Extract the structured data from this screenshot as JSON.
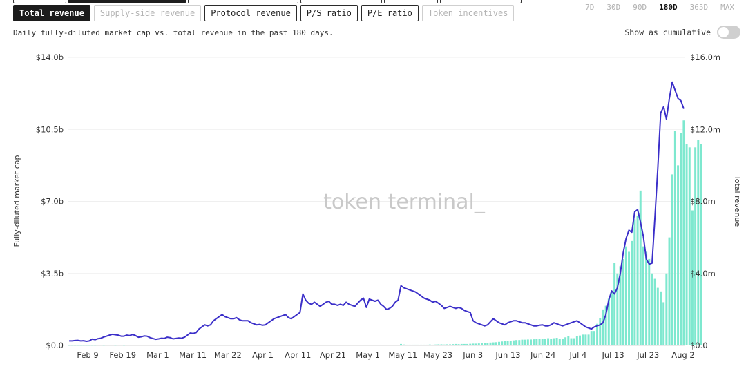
{
  "tabs": [
    {
      "label": "Total revenue",
      "state": "active"
    },
    {
      "label": "Supply-side revenue",
      "state": "disabled"
    },
    {
      "label": "Protocol revenue",
      "state": "normal"
    },
    {
      "label": "P/S ratio",
      "state": "normal"
    },
    {
      "label": "P/E ratio",
      "state": "normal"
    },
    {
      "label": "Token incentives",
      "state": "disabled"
    }
  ],
  "ranges": [
    {
      "label": "7D",
      "active": false
    },
    {
      "label": "30D",
      "active": false
    },
    {
      "label": "90D",
      "active": false
    },
    {
      "label": "180D",
      "active": true
    },
    {
      "label": "365D",
      "active": false
    },
    {
      "label": "MAX",
      "active": false
    }
  ],
  "description": "Daily fully-diluted market cap vs. total revenue in the past 180 days.",
  "cumulative": {
    "label": "Show as cumulative",
    "enabled": false
  },
  "watermark": "token terminal_",
  "chart_data": {
    "type": "bar+line",
    "title": "",
    "x_ticks": [
      "Feb 9",
      "Feb 19",
      "Mar 1",
      "Mar 11",
      "Mar 22",
      "Apr 1",
      "Apr 11",
      "Apr 21",
      "May 1",
      "May 11",
      "May 23",
      "Jun 3",
      "Jun 13",
      "Jun 24",
      "Jul 4",
      "Jul 13",
      "Jul 23",
      "Aug 2"
    ],
    "left_axis": {
      "label": "Fully-diluted market cap",
      "ticks": [
        "$0.0",
        "$3.5b",
        "$7.0b",
        "$10.5b",
        "$14.0b"
      ],
      "range": [
        0,
        14
      ]
    },
    "right_axis": {
      "label": "Total revenue",
      "ticks": [
        "$0.0",
        "$4.0m",
        "$8.0m",
        "$12.0m",
        "$16.0m"
      ],
      "range": [
        0,
        16
      ]
    },
    "grid": true,
    "series": [
      {
        "name": "Fully-diluted market cap",
        "kind": "line",
        "axis": "left",
        "unit": "$b",
        "color": "#3b2fc9",
        "values": [
          0.22,
          0.22,
          0.24,
          0.25,
          0.22,
          0.23,
          0.2,
          0.22,
          0.31,
          0.28,
          0.33,
          0.35,
          0.41,
          0.45,
          0.5,
          0.54,
          0.52,
          0.5,
          0.45,
          0.45,
          0.5,
          0.48,
          0.53,
          0.48,
          0.4,
          0.42,
          0.46,
          0.45,
          0.38,
          0.34,
          0.3,
          0.32,
          0.35,
          0.34,
          0.4,
          0.38,
          0.32,
          0.34,
          0.36,
          0.35,
          0.4,
          0.5,
          0.6,
          0.58,
          0.62,
          0.8,
          0.9,
          1.0,
          0.95,
          1.0,
          1.2,
          1.3,
          1.4,
          1.5,
          1.4,
          1.35,
          1.3,
          1.3,
          1.35,
          1.25,
          1.2,
          1.2,
          1.2,
          1.1,
          1.05,
          1.0,
          1.02,
          0.98,
          1.0,
          1.1,
          1.2,
          1.3,
          1.35,
          1.4,
          1.45,
          1.5,
          1.35,
          1.3,
          1.4,
          1.5,
          1.6,
          2.5,
          2.2,
          2.05,
          2.0,
          2.1,
          2.0,
          1.9,
          2.0,
          2.1,
          2.15,
          2.0,
          2.0,
          1.95,
          2.0,
          1.95,
          2.1,
          2.0,
          1.95,
          1.9,
          2.05,
          2.2,
          2.3,
          1.85,
          2.25,
          2.2,
          2.15,
          2.2,
          2.0,
          1.9,
          1.75,
          1.8,
          1.9,
          2.1,
          2.2,
          2.9,
          2.8,
          2.75,
          2.7,
          2.65,
          2.6,
          2.5,
          2.4,
          2.3,
          2.25,
          2.2,
          2.1,
          2.15,
          2.05,
          1.95,
          1.8,
          1.85,
          1.9,
          1.85,
          1.8,
          1.85,
          1.8,
          1.7,
          1.65,
          1.6,
          1.2,
          1.1,
          1.05,
          1.0,
          0.95,
          1.0,
          1.15,
          1.3,
          1.2,
          1.1,
          1.05,
          1.0,
          1.1,
          1.15,
          1.2,
          1.2,
          1.15,
          1.1,
          1.1,
          1.05,
          1.0,
          0.95,
          0.95,
          0.98,
          1.0,
          0.95,
          0.95,
          1.0,
          1.1,
          1.05,
          1.0,
          0.95,
          1.0,
          1.05,
          1.1,
          1.15,
          1.2,
          1.1,
          1.0,
          0.9,
          0.85,
          0.8,
          0.9,
          0.95,
          1.0,
          1.1,
          1.5,
          2.2,
          2.65,
          2.5,
          2.8,
          3.5,
          4.5,
          5.2,
          5.6,
          5.5,
          6.5,
          6.6,
          6.0,
          5.3,
          4.2,
          3.95,
          4.0,
          6.2,
          8.6,
          11.3,
          11.6,
          11.0,
          12.0,
          12.8,
          12.4,
          12.0,
          11.9,
          11.5
        ]
      },
      {
        "name": "Total revenue",
        "kind": "bar",
        "axis": "right",
        "unit": "$m",
        "color": "#7ee8cf",
        "values": [
          0.01,
          0.01,
          0.01,
          0.01,
          0.01,
          0.01,
          0.01,
          0.01,
          0.01,
          0.01,
          0.02,
          0.02,
          0.01,
          0.02,
          0.02,
          0.02,
          0.01,
          0.02,
          0.02,
          0.01,
          0.02,
          0.02,
          0.02,
          0.02,
          0.02,
          0.02,
          0.02,
          0.02,
          0.02,
          0.02,
          0.02,
          0.02,
          0.02,
          0.02,
          0.02,
          0.02,
          0.02,
          0.02,
          0.02,
          0.02,
          0.02,
          0.02,
          0.02,
          0.02,
          0.02,
          0.02,
          0.02,
          0.02,
          0.02,
          0.02,
          0.02,
          0.02,
          0.02,
          0.02,
          0.02,
          0.02,
          0.02,
          0.02,
          0.02,
          0.02,
          0.02,
          0.02,
          0.02,
          0.02,
          0.02,
          0.02,
          0.02,
          0.02,
          0.02,
          0.02,
          0.02,
          0.02,
          0.02,
          0.02,
          0.02,
          0.02,
          0.02,
          0.02,
          0.02,
          0.02,
          0.02,
          0.02,
          0.02,
          0.02,
          0.02,
          0.02,
          0.02,
          0.02,
          0.02,
          0.02,
          0.02,
          0.02,
          0.02,
          0.02,
          0.02,
          0.02,
          0.02,
          0.02,
          0.02,
          0.02,
          0.02,
          0.02,
          0.02,
          0.02,
          0.02,
          0.02,
          0.02,
          0.02,
          0.02,
          0.02,
          0.02,
          0.02,
          0.02,
          0.02,
          0.02,
          0.08,
          0.05,
          0.04,
          0.04,
          0.04,
          0.04,
          0.04,
          0.04,
          0.04,
          0.04,
          0.05,
          0.04,
          0.05,
          0.06,
          0.06,
          0.05,
          0.06,
          0.06,
          0.07,
          0.08,
          0.07,
          0.08,
          0.08,
          0.08,
          0.09,
          0.1,
          0.1,
          0.11,
          0.12,
          0.12,
          0.14,
          0.16,
          0.17,
          0.18,
          0.2,
          0.22,
          0.24,
          0.25,
          0.26,
          0.28,
          0.3,
          0.3,
          0.32,
          0.32,
          0.33,
          0.33,
          0.34,
          0.35,
          0.36,
          0.37,
          0.38,
          0.4,
          0.38,
          0.4,
          0.42,
          0.38,
          0.35,
          0.45,
          0.5,
          0.4,
          0.4,
          0.5,
          0.55,
          0.6,
          0.6,
          0.6,
          0.8,
          0.8,
          1.2,
          1.5,
          2.0,
          2.2,
          2.6,
          3.0,
          4.6,
          4.0,
          4.4,
          4.8,
          5.5,
          5.2,
          5.8,
          7.0,
          7.2,
          8.6,
          5.5,
          5.2,
          4.8,
          4.0,
          3.7,
          3.2,
          3.0,
          2.4,
          4.0,
          6.0,
          9.5,
          11.9,
          10.0,
          11.8,
          12.5,
          11.2,
          11.0,
          7.5,
          11.0,
          11.4,
          11.2
        ]
      }
    ]
  }
}
